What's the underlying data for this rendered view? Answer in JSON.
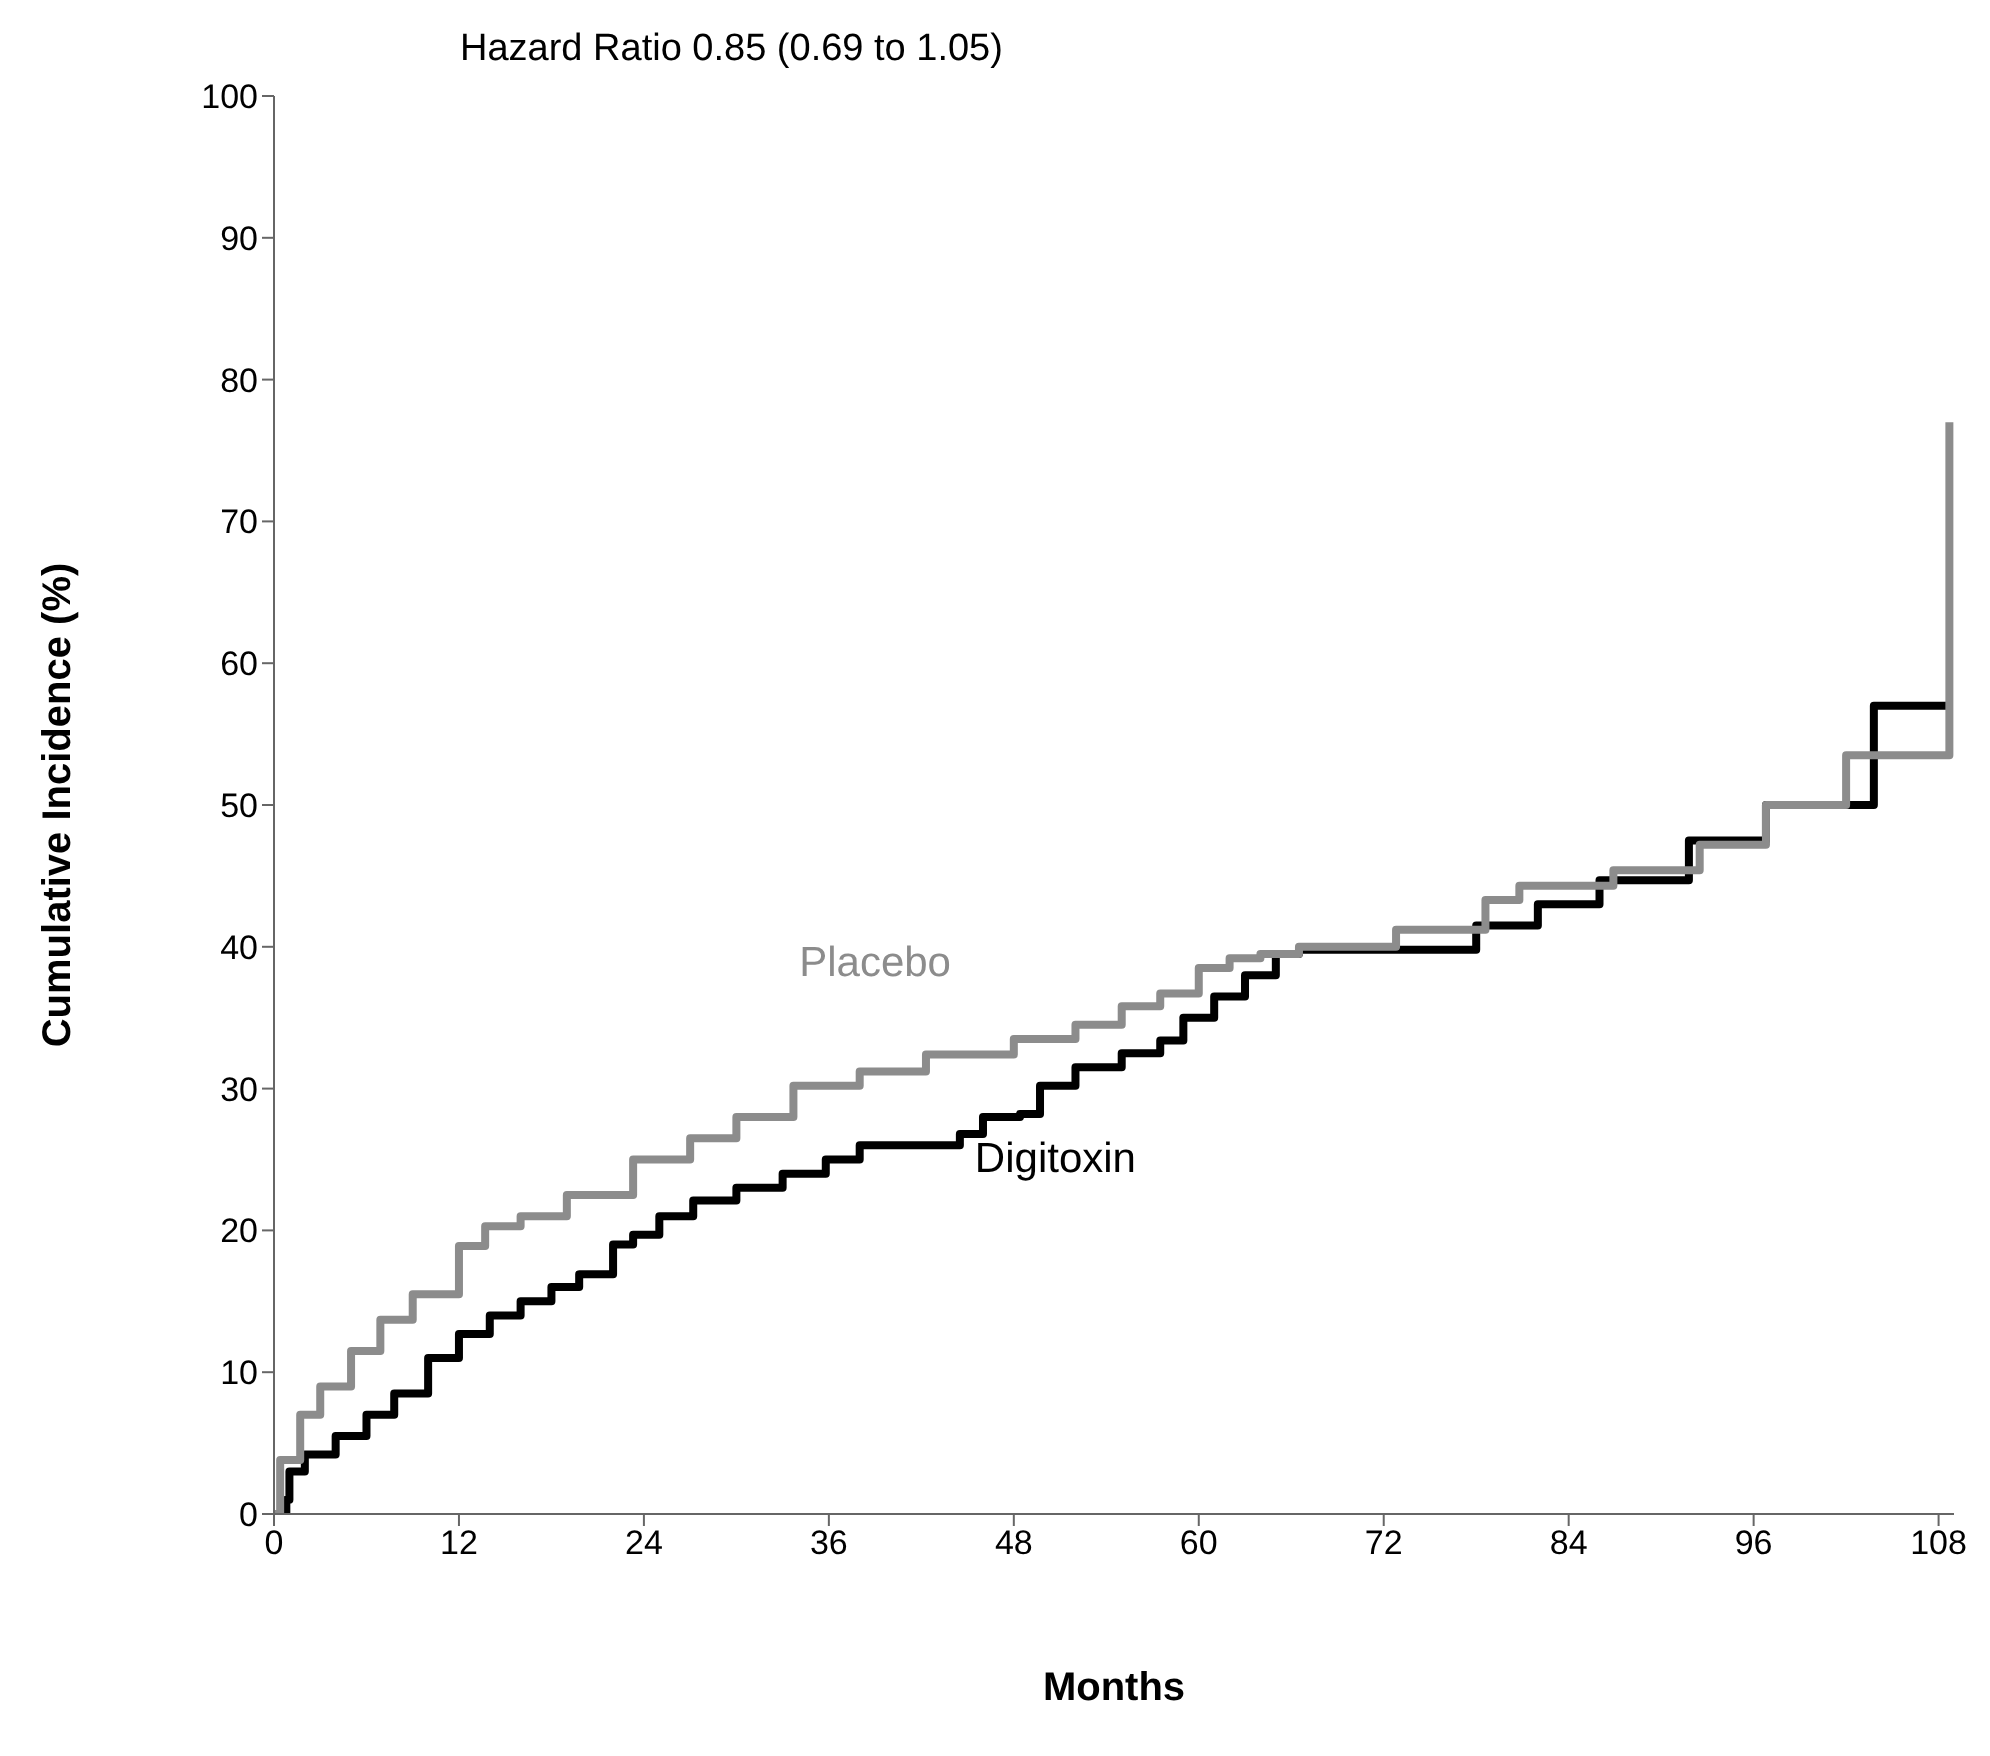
{
  "chart_data": {
    "type": "step",
    "title": "Hazard Ratio 0.85 (0.69  to  1.05)",
    "xlabel": "Months",
    "ylabel": "Cumulative Incidence (%)",
    "xlim": [
      0,
      109
    ],
    "xticks": [
      0,
      12,
      24,
      36,
      48,
      60,
      72,
      84,
      96,
      108
    ],
    "ylim": [
      0,
      100
    ],
    "yticks": [
      0,
      10,
      20,
      30,
      40,
      50,
      60,
      70,
      80,
      90,
      100
    ],
    "grid": false,
    "legend": false,
    "marker": "none",
    "line_style": "solid",
    "series": [
      {
        "name": "Digitoxin",
        "color": "#000000",
        "x": [
          0,
          0.8,
          1,
          2,
          4,
          6,
          7.8,
          10,
          12,
          14,
          16,
          18,
          19.8,
          22,
          23.3,
          25,
          27.2,
          30,
          33,
          35.8,
          38,
          44.5,
          46,
          48.4,
          49.7,
          52,
          55,
          57.5,
          59,
          61,
          63,
          65,
          66.5,
          75,
          78,
          82,
          86,
          91.8,
          96.8,
          103.8,
          108.7
        ],
        "values": [
          0,
          1,
          3,
          4.2,
          5.5,
          7,
          8.5,
          11,
          12.7,
          14,
          15,
          16,
          16.9,
          19,
          19.7,
          21,
          22.1,
          23,
          24,
          25,
          26,
          26.8,
          28,
          28.2,
          30.2,
          31.5,
          32.5,
          33.4,
          35,
          36.5,
          38,
          39.5,
          39.8,
          39.8,
          41.5,
          43,
          44.7,
          47.5,
          50,
          57,
          57
        ]
      },
      {
        "name": "Placebo",
        "color": "#8c8c8c",
        "x": [
          0,
          0.4,
          1.7,
          3,
          5,
          6.9,
          9,
          12,
          13.7,
          16,
          19,
          23.3,
          27,
          30,
          33.7,
          38,
          42.3,
          44.9,
          48,
          52,
          55,
          57.5,
          60,
          62,
          64,
          66.5,
          72.8,
          78.6,
          80.8,
          86.9,
          92.5,
          96.8,
          102,
          108.7
        ],
        "values": [
          0,
          3.8,
          7,
          9,
          11.5,
          13.7,
          15.5,
          18.9,
          20.3,
          21,
          22.5,
          25,
          26.5,
          28,
          30.2,
          31.2,
          32.4,
          32.4,
          33.5,
          34.5,
          35.8,
          36.7,
          38.5,
          39.2,
          39.5,
          40,
          41.2,
          43.3,
          44.3,
          45.4,
          47.2,
          50,
          53.5,
          77
        ]
      }
    ]
  }
}
